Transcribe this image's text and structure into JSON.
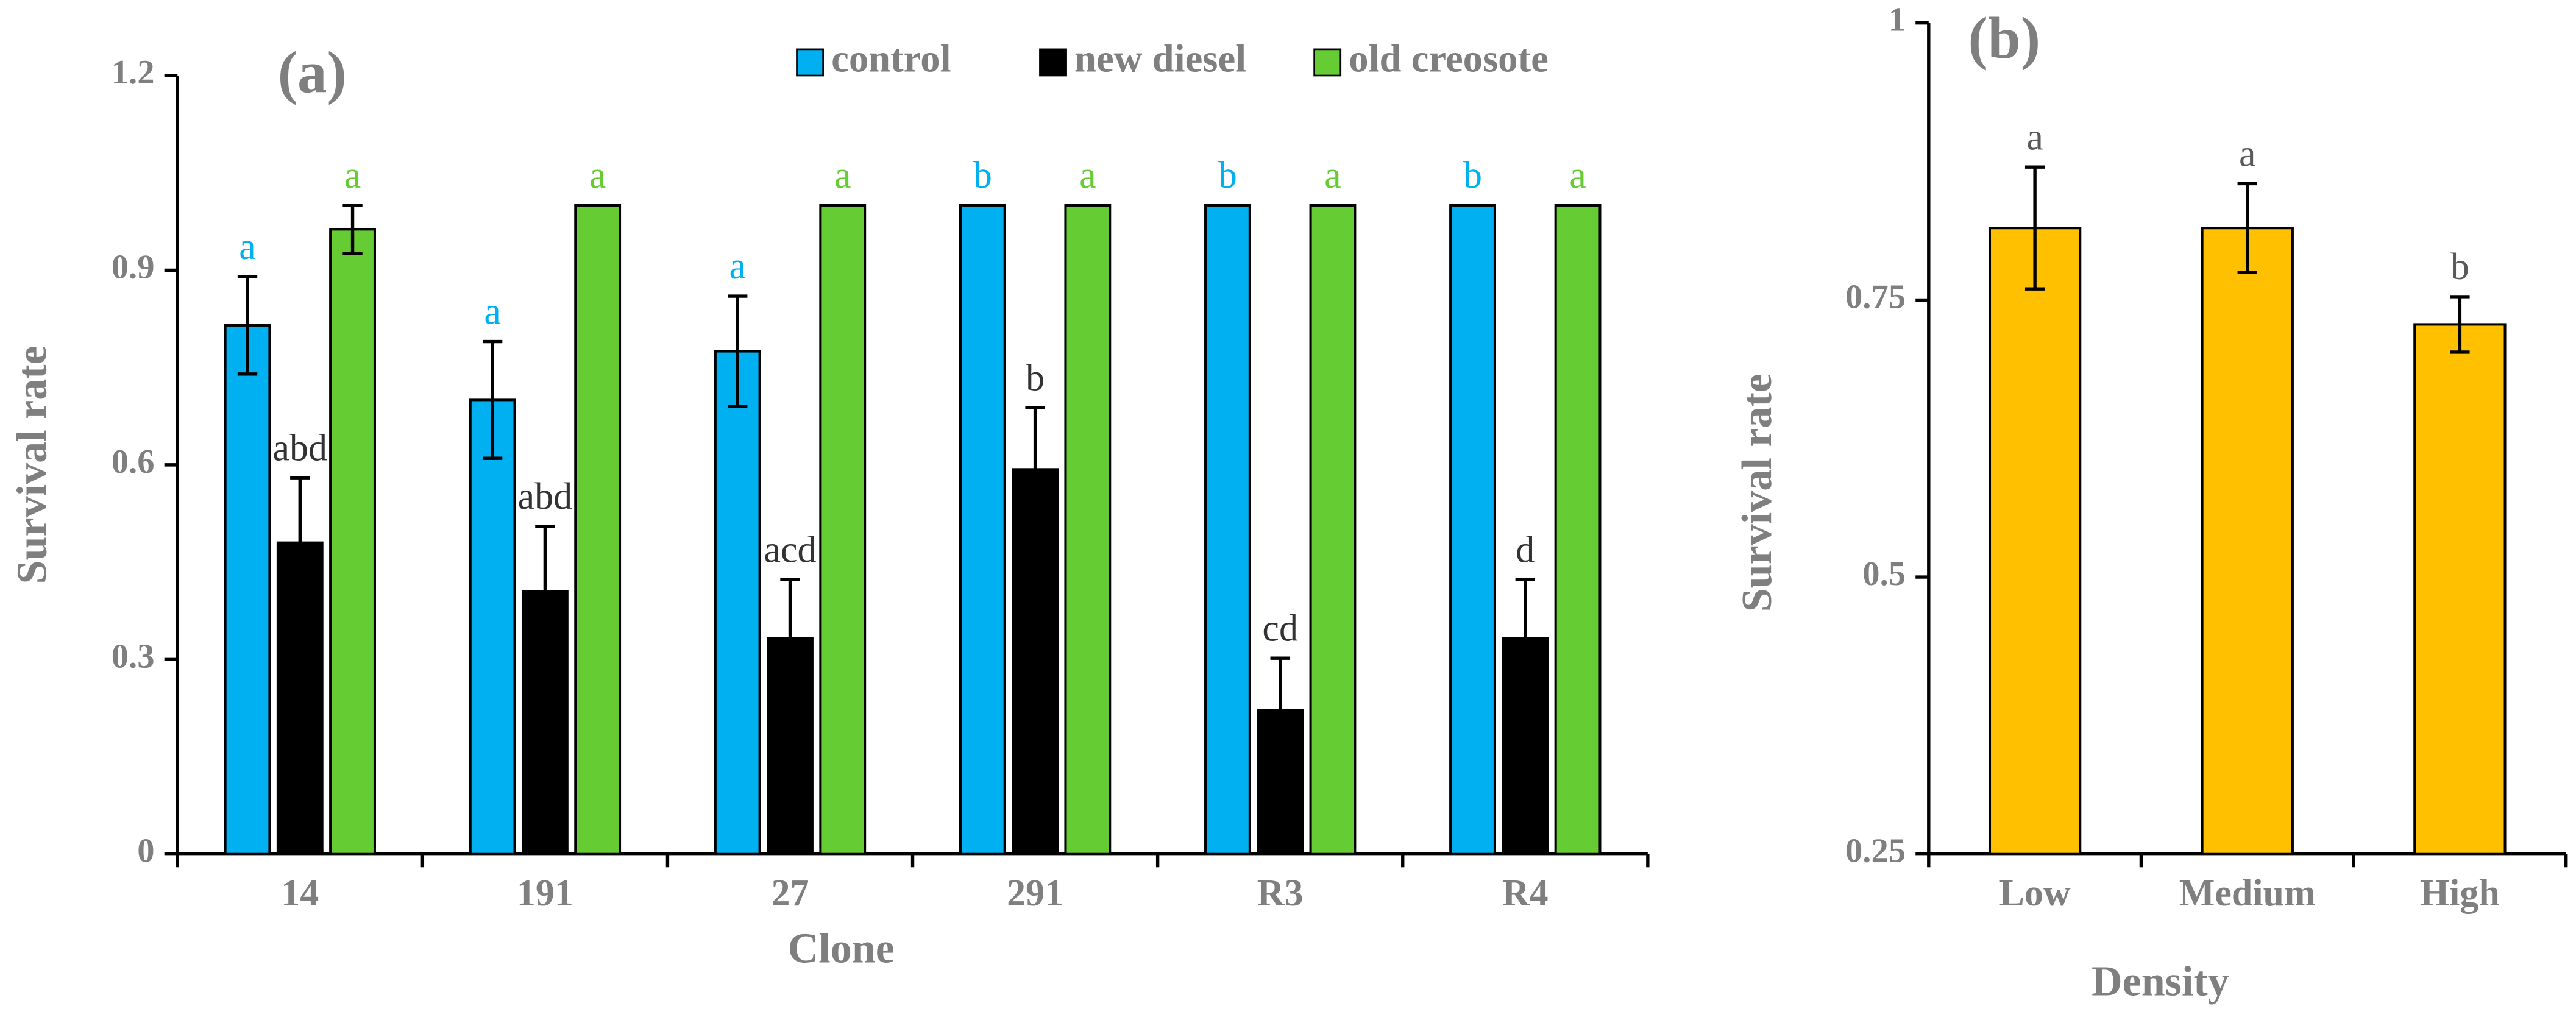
{
  "chart_data": [
    {
      "type": "bar",
      "title": "(a)",
      "x_label": "Clone",
      "y_label": "Survival rate",
      "categories": [
        "14",
        "191",
        "27",
        "291",
        "R3",
        "R4"
      ],
      "series": [
        {
          "name": "control",
          "color": "#00b0f0",
          "label_color": "#00b0f0",
          "values": [
            0.815,
            0.7,
            0.775,
            1,
            1,
            1
          ],
          "errors": [
            0.075,
            0.09,
            0.085,
            null,
            null,
            null
          ],
          "letters": [
            "a",
            "a",
            "a",
            "b",
            "b",
            "b"
          ]
        },
        {
          "name": "new diesel",
          "color": "#000000",
          "label_color": "#333333",
          "values": [
            0.48,
            0.405,
            0.333,
            0.593,
            0.222,
            0.333
          ],
          "errors": [
            0.1,
            0.1,
            0.09,
            0.095,
            0.08,
            0.09
          ],
          "letters": [
            "abd",
            "abd",
            "acd",
            "b",
            "cd",
            "d"
          ]
        },
        {
          "name": "old creosote",
          "color": "#66cc33",
          "label_color": "#66cc33",
          "values": [
            0.963,
            1,
            1,
            1,
            1,
            1
          ],
          "errors": [
            0.037,
            null,
            null,
            null,
            null,
            null
          ],
          "letters": [
            "a",
            "a",
            "a",
            "a",
            "a",
            "a"
          ]
        }
      ],
      "ylim": [
        0,
        1.2
      ],
      "yticks": [
        0,
        0.3,
        0.6,
        0.9,
        1.2
      ],
      "legend": "top"
    },
    {
      "type": "bar",
      "title": "(b)",
      "x_label": "Density",
      "y_label": "Survival rate",
      "categories": [
        "Low",
        "Medium",
        "High"
      ],
      "values": [
        0.815,
        0.815,
        0.728
      ],
      "errors": [
        0.055,
        0.04,
        0.025
      ],
      "letters": [
        "a",
        "a",
        "b"
      ],
      "color": "#ffc000",
      "label_color": "#595959",
      "ylim": [
        0.25,
        1
      ],
      "yticks": [
        0.25,
        0.5,
        0.75,
        1
      ]
    }
  ]
}
